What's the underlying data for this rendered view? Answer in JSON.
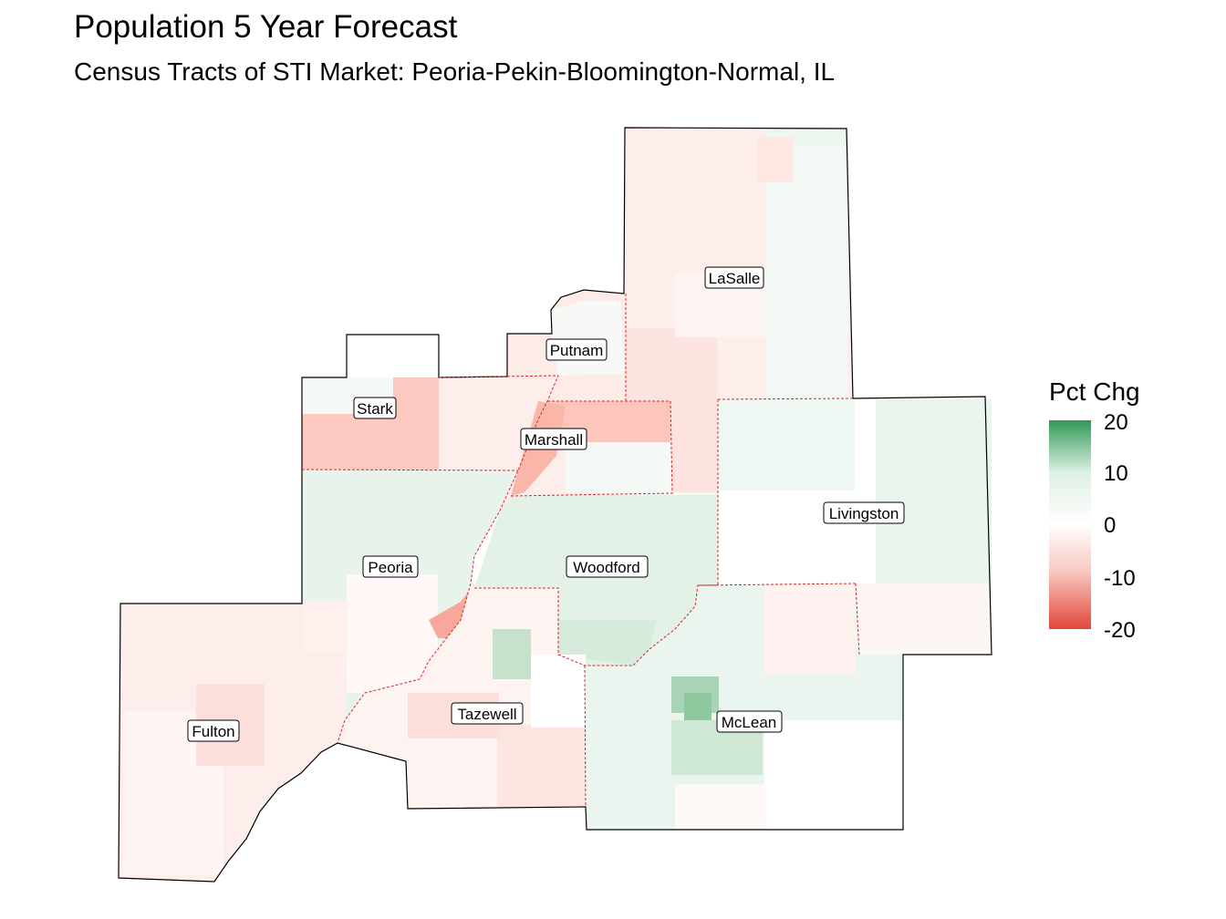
{
  "title": "Population 5 Year Forecast",
  "subtitle": "Census Tracts of STI Market: Peoria-Pekin-Bloomington-Normal, IL",
  "legend": {
    "title": "Pct Chg",
    "ticks": [
      "20",
      "10",
      "0",
      "-10",
      "-20"
    ],
    "colors": {
      "high": "#2e9a55",
      "mid": "#ffffff",
      "low": "#e2473a"
    }
  },
  "counties": [
    {
      "id": "lasalle",
      "label": "LaSalle"
    },
    {
      "id": "putnam",
      "label": "Putnam"
    },
    {
      "id": "stark",
      "label": "Stark"
    },
    {
      "id": "marshall",
      "label": "Marshall"
    },
    {
      "id": "livingston",
      "label": "Livingston"
    },
    {
      "id": "peoria",
      "label": "Peoria"
    },
    {
      "id": "woodford",
      "label": "Woodford"
    },
    {
      "id": "fulton",
      "label": "Fulton"
    },
    {
      "id": "tazewell",
      "label": "Tazewell"
    },
    {
      "id": "mclean",
      "label": "McLean"
    }
  ]
}
